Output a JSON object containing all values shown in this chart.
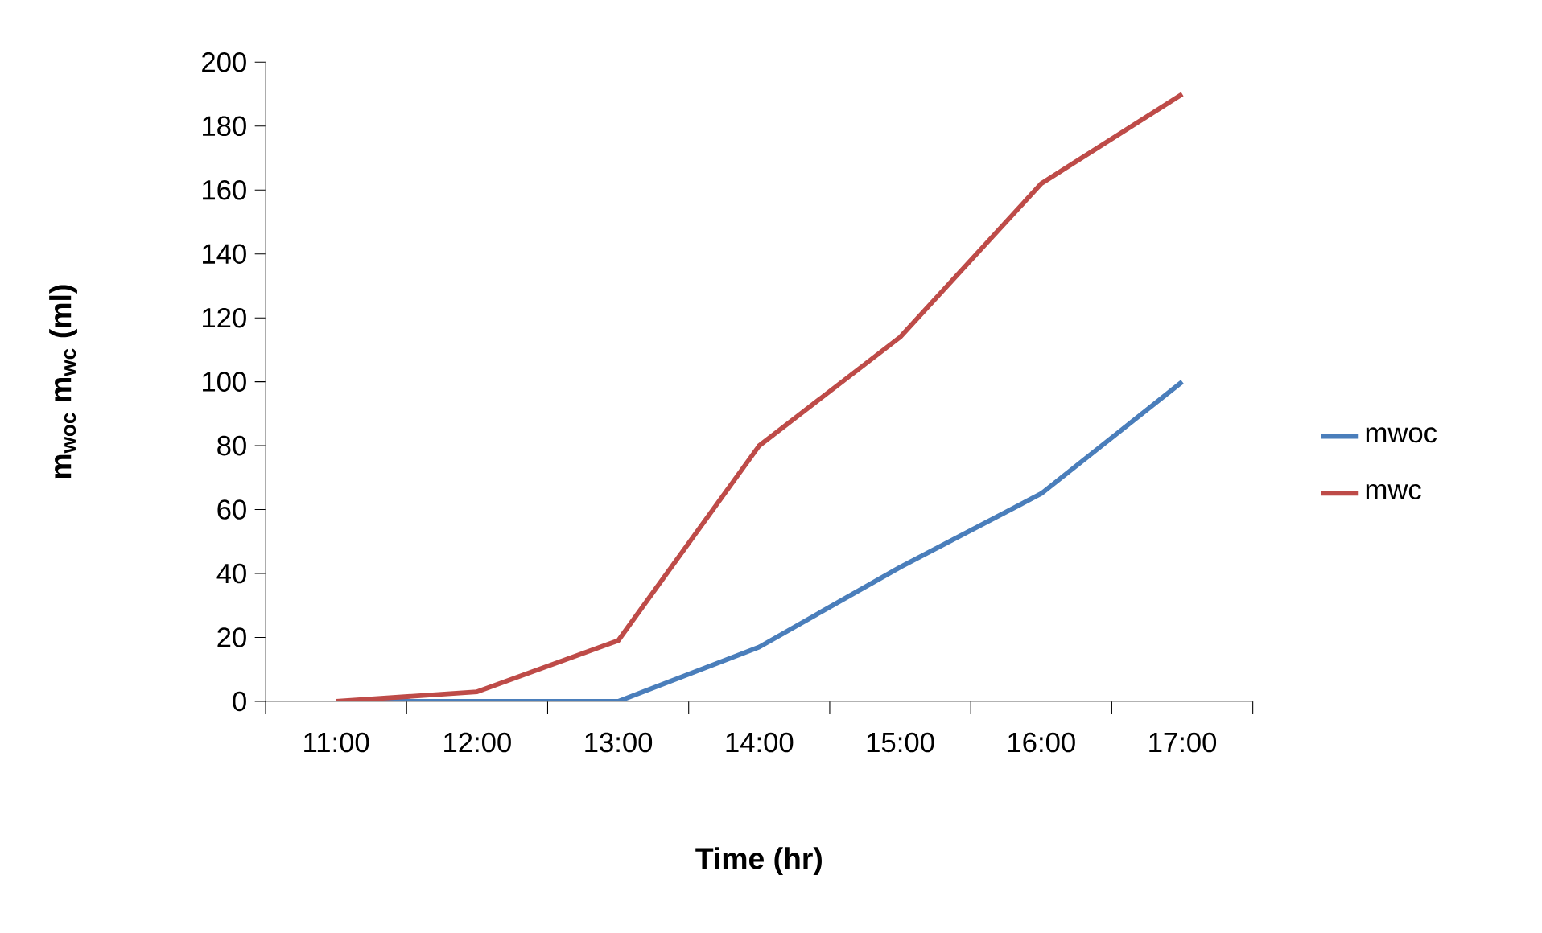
{
  "chart_data": {
    "type": "line",
    "xlabel": "Time (hr)",
    "ylabel": "m$_{woc}$ m$_{wc}$ (ml)",
    "categories": [
      "11:00",
      "12:00",
      "13:00",
      "14:00",
      "15:00",
      "16:00",
      "17:00"
    ],
    "series": [
      {
        "name": "mwoc",
        "color": "#4a7ebb",
        "values": [
          0,
          0,
          0,
          17,
          42,
          65,
          100
        ]
      },
      {
        "name": "mwc",
        "color": "#be4b48",
        "values": [
          0,
          3,
          19,
          80,
          114,
          162,
          190
        ]
      }
    ],
    "ylim": [
      0,
      200
    ],
    "yticks": [
      0,
      20,
      40,
      60,
      80,
      100,
      120,
      140,
      160,
      180,
      200
    ],
    "grid": false,
    "legend": "right",
    "marker": "none",
    "line_style": "solid"
  }
}
